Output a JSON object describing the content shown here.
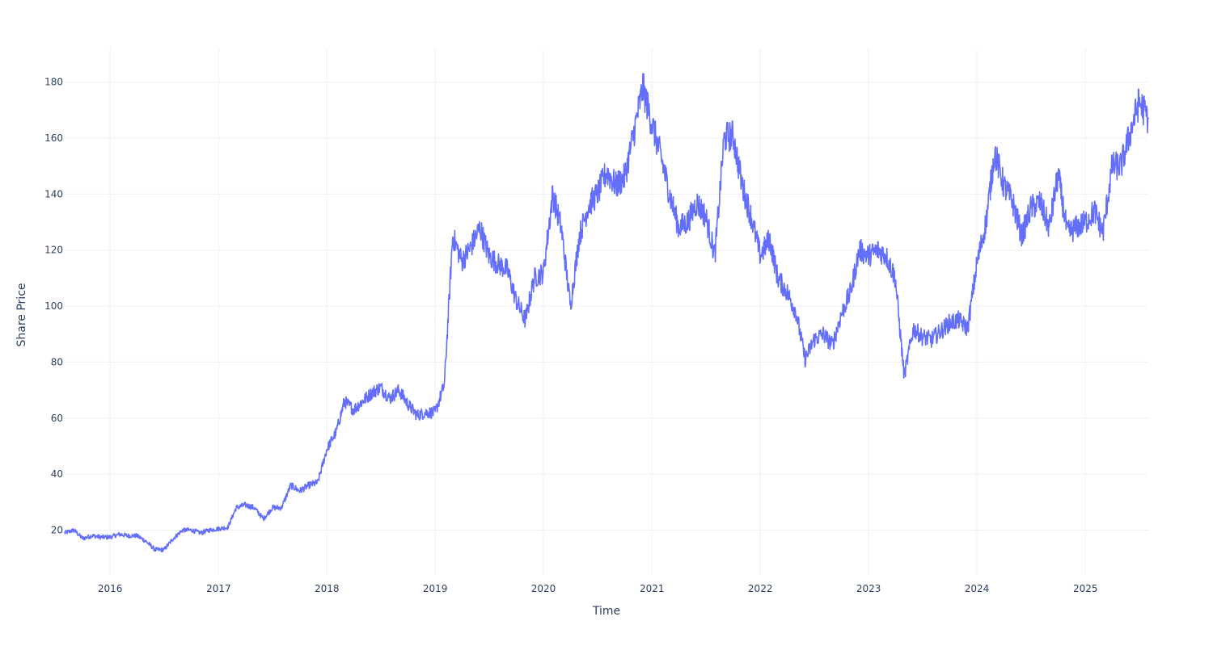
{
  "chart_data": {
    "type": "line",
    "title": "",
    "xlabel": "Time",
    "ylabel": "Share Price",
    "grid": true,
    "legend": "none",
    "xlim": [
      "2015-08-01",
      "2025-08-01"
    ],
    "ylim": [
      4,
      192
    ],
    "x_ticks": [
      "2016",
      "2017",
      "2018",
      "2019",
      "2020",
      "2021",
      "2022",
      "2023",
      "2024",
      "2025"
    ],
    "y_ticks": [
      20,
      40,
      60,
      80,
      100,
      120,
      140,
      160,
      180
    ],
    "series": [
      {
        "color": "#636efa",
        "x": [
          "2015-08-01",
          "2015-09-01",
          "2015-10-01",
          "2015-11-01",
          "2015-12-01",
          "2016-01-01",
          "2016-02-01",
          "2016-03-01",
          "2016-04-01",
          "2016-05-01",
          "2016-06-01",
          "2016-07-01",
          "2016-08-01",
          "2016-09-01",
          "2016-10-01",
          "2016-11-01",
          "2016-12-01",
          "2017-01-01",
          "2017-02-01",
          "2017-03-01",
          "2017-04-01",
          "2017-05-01",
          "2017-06-01",
          "2017-07-01",
          "2017-08-01",
          "2017-09-01",
          "2017-10-01",
          "2017-11-01",
          "2017-12-01",
          "2018-01-01",
          "2018-02-01",
          "2018-03-01",
          "2018-04-01",
          "2018-05-01",
          "2018-06-01",
          "2018-07-01",
          "2018-08-01",
          "2018-09-01",
          "2018-10-01",
          "2018-11-01",
          "2018-12-01",
          "2019-01-01",
          "2019-02-01",
          "2019-03-01",
          "2019-04-01",
          "2019-05-01",
          "2019-06-01",
          "2019-07-01",
          "2019-08-01",
          "2019-09-01",
          "2019-10-01",
          "2019-11-01",
          "2019-12-01",
          "2020-01-01",
          "2020-02-01",
          "2020-03-01",
          "2020-04-01",
          "2020-05-01",
          "2020-06-01",
          "2020-07-01",
          "2020-08-01",
          "2020-09-01",
          "2020-10-01",
          "2020-11-01",
          "2020-12-01",
          "2021-01-01",
          "2021-02-01",
          "2021-03-01",
          "2021-04-01",
          "2021-05-01",
          "2021-06-01",
          "2021-07-01",
          "2021-08-01",
          "2021-09-01",
          "2021-10-01",
          "2021-11-01",
          "2021-12-01",
          "2022-01-01",
          "2022-02-01",
          "2022-03-01",
          "2022-04-01",
          "2022-05-01",
          "2022-06-01",
          "2022-07-01",
          "2022-08-01",
          "2022-09-01",
          "2022-10-01",
          "2022-11-01",
          "2022-12-01",
          "2023-01-01",
          "2023-02-01",
          "2023-03-01",
          "2023-04-01",
          "2023-05-01",
          "2023-06-01",
          "2023-07-01",
          "2023-08-01",
          "2023-09-01",
          "2023-10-01",
          "2023-11-01",
          "2023-12-01",
          "2024-01-01",
          "2024-02-01",
          "2024-03-01",
          "2024-04-01",
          "2024-05-01",
          "2024-06-01",
          "2024-07-01",
          "2024-08-01",
          "2024-09-01",
          "2024-10-01",
          "2024-11-01",
          "2024-12-01",
          "2025-01-01",
          "2025-02-01",
          "2025-03-01",
          "2025-04-01",
          "2025-05-01",
          "2025-06-01",
          "2025-07-01",
          "2025-08-01"
        ],
        "y": [
          19,
          20,
          17,
          18,
          17.5,
          17.5,
          18.5,
          18,
          18,
          16,
          13,
          13,
          17,
          20,
          20,
          19,
          20,
          20.5,
          21,
          28,
          29,
          28,
          24,
          28,
          28,
          36,
          34,
          36,
          37,
          49,
          55,
          66,
          63,
          66,
          69,
          71,
          67,
          70,
          65,
          61,
          62,
          62,
          72,
          125,
          116,
          121,
          128,
          118,
          115,
          113,
          102,
          95,
          110,
          112,
          140,
          128,
          100,
          125,
          136,
          140,
          148,
          143,
          146,
          162,
          178,
          165,
          153,
          140,
          128,
          130,
          137,
          132,
          118,
          160,
          161,
          143,
          132,
          118,
          124,
          110,
          105,
          98,
          81,
          88,
          90,
          86,
          97,
          105,
          120,
          118,
          120,
          118,
          110,
          75,
          92,
          89,
          88,
          91,
          94,
          95,
          92,
          115,
          130,
          155,
          143,
          137,
          125,
          135,
          137,
          128,
          147,
          126,
          128,
          130,
          134,
          126,
          150,
          150,
          162,
          173,
          167
        ]
      }
    ]
  }
}
